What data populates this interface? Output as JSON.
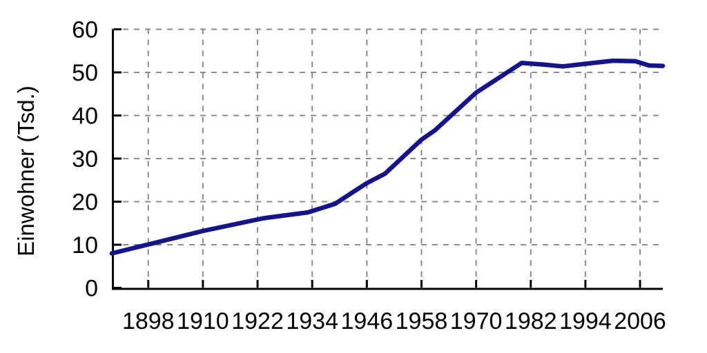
{
  "chart_data": {
    "type": "line",
    "title": "",
    "xlabel": "",
    "ylabel": "Einwohner (Tsd.)",
    "xlim": [
      1890,
      2011
    ],
    "ylim": [
      0,
      60
    ],
    "x_ticks": [
      1898,
      1910,
      1922,
      1934,
      1946,
      1958,
      1970,
      1982,
      1994,
      2006
    ],
    "y_ticks": [
      0,
      10,
      20,
      30,
      40,
      50,
      60
    ],
    "grid": "dashed",
    "legend_position": "none",
    "colors": {
      "line": "#14148F",
      "grid": "#8a8a8a",
      "axis": "#000000",
      "background": "#ffffff"
    },
    "series": [
      {
        "name": "Einwohner (Tsd.)",
        "color": "#14148F",
        "points": [
          [
            1890,
            8.0
          ],
          [
            1900,
            10.6
          ],
          [
            1910,
            13.2
          ],
          [
            1923,
            16.1
          ],
          [
            1925,
            16.4
          ],
          [
            1933,
            17.5
          ],
          [
            1939,
            19.5
          ],
          [
            1946,
            24.3
          ],
          [
            1950,
            26.5
          ],
          [
            1958,
            34.4
          ],
          [
            1961,
            36.6
          ],
          [
            1970,
            45.3
          ],
          [
            1980,
            52.2
          ],
          [
            1985,
            51.8
          ],
          [
            1989,
            51.4
          ],
          [
            1994,
            52.0
          ],
          [
            2000,
            52.7
          ],
          [
            2005,
            52.6
          ],
          [
            2008,
            51.6
          ],
          [
            2011,
            51.5
          ]
        ]
      }
    ]
  }
}
